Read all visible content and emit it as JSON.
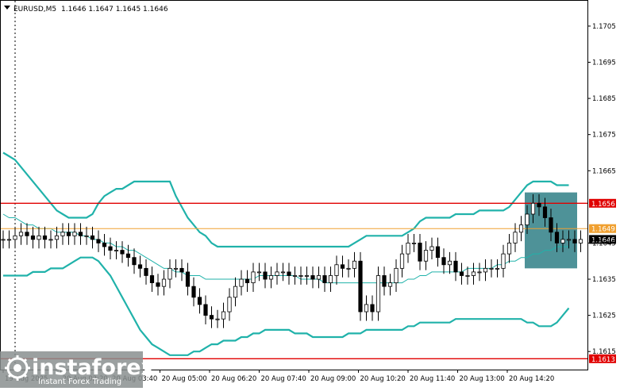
{
  "header": {
    "symbol": "EURUSD,M5",
    "ohlc": "1.1646 1.1647 1.1645 1.1646"
  },
  "watermark": {
    "brand": "instaforex",
    "tagline": "Instant Forex Trading"
  },
  "colors": {
    "candle": "#000000",
    "bollinger": "#20b2aa",
    "level_red": "#e00000",
    "level_orange": "#f0a030",
    "highlight_box": "#2f7f86",
    "grid": "#c8c8c8"
  },
  "chart_data": {
    "type": "candlestick",
    "y_ticks": [
      "1.1705",
      "1.1695",
      "1.1685",
      "1.1675",
      "1.1665",
      "1.1645",
      "1.1635",
      "1.1625",
      "1.1615"
    ],
    "y_tick_values": [
      1.1705,
      1.1695,
      1.1685,
      1.1675,
      1.1665,
      1.1645,
      1.1635,
      1.1625,
      1.1615
    ],
    "x_ticks": [
      "19 Aug 2025",
      "20 Aug 02:20",
      "20 Aug 03:40",
      "20 Aug 05:00",
      "20 Aug 06:20",
      "20 Aug 07:40",
      "20 Aug 09:00",
      "20 Aug 10:20",
      "20 Aug 11:40",
      "20 Aug 13:00",
      "20 Aug 14:20"
    ],
    "levels": [
      {
        "label": "1.1656",
        "value": 1.1656,
        "kind": "red"
      },
      {
        "label": "1.1649",
        "value": 1.1649,
        "kind": "orange"
      },
      {
        "label": "1.1646",
        "value": 1.1646,
        "kind": "current"
      },
      {
        "label": "1.1613",
        "value": 1.1613,
        "kind": "red"
      }
    ],
    "close": [
      1.1646,
      1.1646,
      1.1647,
      1.1648,
      1.1647,
      1.1646,
      1.1647,
      1.1646,
      1.1646,
      1.1647,
      1.1648,
      1.1647,
      1.1648,
      1.1647,
      1.1647,
      1.1646,
      1.1645,
      1.1644,
      1.1643,
      1.1643,
      1.1642,
      1.1641,
      1.1639,
      1.1638,
      1.1636,
      1.1634,
      1.1633,
      1.1635,
      1.1638,
      1.1638,
      1.1637,
      1.1633,
      1.163,
      1.1628,
      1.1625,
      1.1624,
      1.1624,
      1.1626,
      1.163,
      1.1633,
      1.1635,
      1.1634,
      1.1637,
      1.1637,
      1.1635,
      1.1636,
      1.1637,
      1.1637,
      1.1636,
      1.1636,
      1.1636,
      1.1636,
      1.1635,
      1.1636,
      1.1634,
      1.1636,
      1.1639,
      1.1638,
      1.1638,
      1.164,
      1.1626,
      1.1628,
      1.1626,
      1.1636,
      1.1633,
      1.1634,
      1.1638,
      1.1642,
      1.1645,
      1.1645,
      1.164,
      1.1643,
      1.1644,
      1.1641,
      1.1639,
      1.164,
      1.1637,
      1.1636,
      1.1636,
      1.1637,
      1.1637,
      1.1638,
      1.1638,
      1.1638,
      1.1642,
      1.1645,
      1.1648,
      1.165,
      1.1653,
      1.1656,
      1.1655,
      1.1652,
      1.1648,
      1.1645,
      1.1646,
      1.1646,
      1.1645,
      1.1646
    ],
    "bb_upper": [
      1.167,
      1.1669,
      1.1668,
      1.1666,
      1.1664,
      1.1662,
      1.166,
      1.1658,
      1.1656,
      1.1654,
      1.1653,
      1.1652,
      1.1652,
      1.1652,
      1.1652,
      1.1653,
      1.1656,
      1.1658,
      1.1659,
      1.166,
      1.166,
      1.1661,
      1.1662,
      1.1662,
      1.1662,
      1.1662,
      1.1662,
      1.1662,
      1.1662,
      1.1658,
      1.1655,
      1.1652,
      1.165,
      1.1648,
      1.1647,
      1.1645,
      1.1644,
      1.1644,
      1.1644,
      1.1644,
      1.1644,
      1.1644,
      1.1644,
      1.1644,
      1.1644,
      1.1644,
      1.1644,
      1.1644,
      1.1644,
      1.1644,
      1.1644,
      1.1644,
      1.1644,
      1.1644,
      1.1644,
      1.1644,
      1.1644,
      1.1644,
      1.1644,
      1.1645,
      1.1646,
      1.1647,
      1.1647,
      1.1647,
      1.1647,
      1.1647,
      1.1647,
      1.1647,
      1.1648,
      1.1649,
      1.1651,
      1.1652,
      1.1652,
      1.1652,
      1.1652,
      1.1652,
      1.1653,
      1.1653,
      1.1653,
      1.1653,
      1.1654,
      1.1654,
      1.1654,
      1.1654,
      1.1654,
      1.1655,
      1.1657,
      1.1659,
      1.1661,
      1.1662,
      1.1662,
      1.1662,
      1.1662,
      1.1661,
      1.1661,
      1.1661
    ],
    "bb_middle": [
      1.1653,
      1.1652,
      1.1652,
      1.1651,
      1.165,
      1.165,
      1.1649,
      1.1649,
      1.1649,
      1.1648,
      1.1648,
      1.1648,
      1.1648,
      1.1647,
      1.1647,
      1.1646,
      1.1646,
      1.1645,
      1.1645,
      1.1644,
      1.1644,
      1.1643,
      1.1643,
      1.1642,
      1.1641,
      1.164,
      1.1639,
      1.1638,
      1.1638,
      1.1637,
      1.1637,
      1.1636,
      1.1636,
      1.1636,
      1.1635,
      1.1635,
      1.1635,
      1.1635,
      1.1635,
      1.1635,
      1.1635,
      1.1635,
      1.1635,
      1.1636,
      1.1636,
      1.1636,
      1.1636,
      1.1636,
      1.1636,
      1.1636,
      1.1635,
      1.1635,
      1.1635,
      1.1635,
      1.1634,
      1.1634,
      1.1634,
      1.1634,
      1.1634,
      1.1634,
      1.1634,
      1.1634,
      1.1634,
      1.1634,
      1.1634,
      1.1634,
      1.1634,
      1.1634,
      1.1635,
      1.1635,
      1.1636,
      1.1636,
      1.1637,
      1.1637,
      1.1637,
      1.1637,
      1.1637,
      1.1637,
      1.1638,
      1.1638,
      1.1638,
      1.1638,
      1.1638,
      1.1639,
      1.1639,
      1.164,
      1.164,
      1.1641,
      1.1641,
      1.1642,
      1.1642,
      1.1643,
      1.1643,
      1.1644,
      1.1644,
      1.1644
    ],
    "bb_lower": [
      1.1636,
      1.1636,
      1.1636,
      1.1636,
      1.1636,
      1.1637,
      1.1637,
      1.1637,
      1.1638,
      1.1638,
      1.1638,
      1.1639,
      1.164,
      1.1641,
      1.1641,
      1.1641,
      1.164,
      1.1638,
      1.1636,
      1.1633,
      1.163,
      1.1627,
      1.1624,
      1.1621,
      1.1619,
      1.1617,
      1.1616,
      1.1615,
      1.1614,
      1.1614,
      1.1614,
      1.1614,
      1.1615,
      1.1615,
      1.1616,
      1.1617,
      1.1617,
      1.1618,
      1.1618,
      1.1618,
      1.1619,
      1.1619,
      1.162,
      1.162,
      1.1621,
      1.1621,
      1.1621,
      1.1621,
      1.1621,
      1.162,
      1.162,
      1.162,
      1.1619,
      1.1619,
      1.1619,
      1.1619,
      1.1619,
      1.1619,
      1.162,
      1.162,
      1.162,
      1.1621,
      1.1621,
      1.1621,
      1.1621,
      1.1621,
      1.1621,
      1.1621,
      1.1622,
      1.1622,
      1.1623,
      1.1623,
      1.1623,
      1.1623,
      1.1623,
      1.1623,
      1.1624,
      1.1624,
      1.1624,
      1.1624,
      1.1624,
      1.1624,
      1.1624,
      1.1624,
      1.1624,
      1.1624,
      1.1624,
      1.1624,
      1.1623,
      1.1623,
      1.1622,
      1.1622,
      1.1622,
      1.1623,
      1.1625,
      1.1627
    ],
    "price_range": [
      1.161,
      1.1712
    ],
    "grid": true,
    "highlight_box": {
      "price_top": 1.1659,
      "price_bottom": 1.1638,
      "bar_start": 88,
      "bar_end": 96
    }
  }
}
